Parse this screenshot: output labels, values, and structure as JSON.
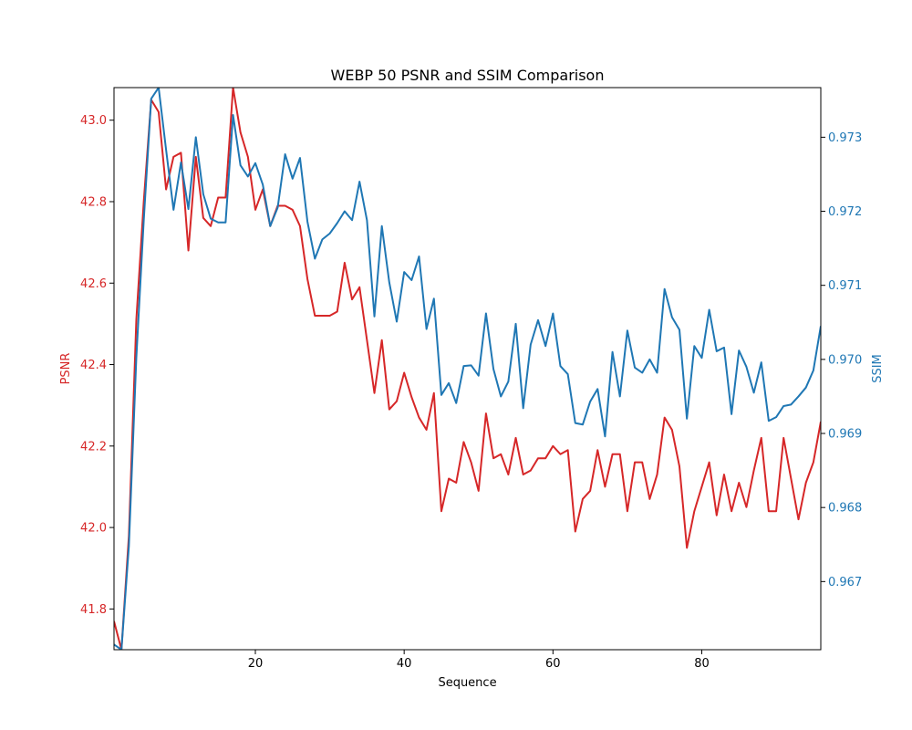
{
  "chart_data": {
    "type": "line",
    "title": "WEBP 50 PSNR and SSIM Comparison",
    "xlabel": "Sequence",
    "ylabel_left": "PSNR",
    "ylabel_right": "SSIM",
    "xlim": [
      1,
      96
    ],
    "ylim_left": [
      41.7,
      43.08
    ],
    "ylim_right": [
      0.96608,
      0.97367
    ],
    "x_ticks": [
      20,
      40,
      60,
      80
    ],
    "y_ticks_left": [
      41.8,
      42.0,
      42.2,
      42.4,
      42.6,
      42.8,
      43.0
    ],
    "y_ticks_left_labels": [
      "41.8",
      "42.0",
      "42.2",
      "42.4",
      "42.6",
      "42.8",
      "43.0"
    ],
    "y_ticks_right": [
      0.967,
      0.968,
      0.969,
      0.97,
      0.971,
      0.972,
      0.973
    ],
    "y_ticks_right_labels": [
      "0.967",
      "0.968",
      "0.969",
      "0.970",
      "0.971",
      "0.972",
      "0.973"
    ],
    "grid": false,
    "colors": {
      "psnr": "#d62728",
      "ssim": "#1f77b4"
    },
    "x": [
      1,
      2,
      3,
      4,
      5,
      6,
      7,
      8,
      9,
      10,
      11,
      12,
      13,
      14,
      15,
      16,
      17,
      18,
      19,
      20,
      21,
      22,
      23,
      24,
      25,
      26,
      27,
      28,
      29,
      30,
      31,
      32,
      33,
      34,
      35,
      36,
      37,
      38,
      39,
      40,
      41,
      42,
      43,
      44,
      45,
      46,
      47,
      48,
      49,
      50,
      51,
      52,
      53,
      54,
      55,
      56,
      57,
      58,
      59,
      60,
      61,
      62,
      63,
      64,
      65,
      66,
      67,
      68,
      69,
      70,
      71,
      72,
      73,
      74,
      75,
      76,
      77,
      78,
      79,
      80,
      81,
      82,
      83,
      84,
      85,
      86,
      87,
      88,
      89,
      90,
      91,
      92,
      93,
      94,
      95,
      96
    ],
    "series": [
      {
        "key": "psnr",
        "axis": "left",
        "values": [
          41.77,
          41.7,
          41.98,
          42.51,
          42.8,
          43.05,
          43.02,
          42.83,
          42.91,
          42.92,
          42.68,
          42.91,
          42.76,
          42.74,
          42.81,
          42.81,
          43.08,
          42.97,
          42.91,
          42.78,
          42.83,
          42.74,
          42.79,
          42.79,
          42.78,
          42.74,
          42.61,
          42.52,
          42.52,
          42.52,
          42.53,
          42.65,
          42.56,
          42.59,
          42.46,
          42.33,
          42.46,
          42.29,
          42.31,
          42.38,
          42.32,
          42.27,
          42.24,
          42.33,
          42.04,
          42.12,
          42.11,
          42.21,
          42.16,
          42.09,
          42.28,
          42.17,
          42.18,
          42.13,
          42.22,
          42.13,
          42.14,
          42.17,
          42.17,
          42.2,
          42.18,
          42.19,
          41.99,
          42.07,
          42.09,
          42.19,
          42.1,
          42.18,
          42.18,
          42.04,
          42.16,
          42.16,
          42.07,
          42.13,
          42.27,
          42.24,
          42.15,
          41.95,
          42.04,
          42.1,
          42.16,
          42.03,
          42.13,
          42.04,
          42.11,
          42.05,
          42.14,
          42.22,
          42.04,
          42.04,
          42.22,
          42.12,
          42.02,
          42.11,
          42.16,
          42.26
        ]
      },
      {
        "key": "ssim",
        "axis": "right",
        "values": [
          0.96615,
          0.96608,
          0.96748,
          0.97002,
          0.97188,
          0.97352,
          0.97367,
          0.97283,
          0.97202,
          0.97266,
          0.97203,
          0.973,
          0.97223,
          0.9719,
          0.97185,
          0.97185,
          0.9733,
          0.97262,
          0.97247,
          0.97265,
          0.97236,
          0.9718,
          0.97205,
          0.97277,
          0.97244,
          0.97272,
          0.97186,
          0.97136,
          0.97162,
          0.9717,
          0.97184,
          0.972,
          0.97188,
          0.9724,
          0.97188,
          0.97058,
          0.9718,
          0.97104,
          0.97051,
          0.97118,
          0.97107,
          0.97139,
          0.97041,
          0.97082,
          0.96952,
          0.96968,
          0.96941,
          0.96991,
          0.96992,
          0.96978,
          0.97062,
          0.96987,
          0.9695,
          0.9697,
          0.97048,
          0.96934,
          0.9702,
          0.97053,
          0.97018,
          0.97062,
          0.96991,
          0.9698,
          0.96914,
          0.96912,
          0.96943,
          0.9696,
          0.96896,
          0.9701,
          0.9695,
          0.97039,
          0.96989,
          0.96982,
          0.97,
          0.96982,
          0.97095,
          0.97057,
          0.9704,
          0.9692,
          0.97018,
          0.97002,
          0.97067,
          0.97011,
          0.97016,
          0.96926,
          0.97012,
          0.9699,
          0.96955,
          0.96996,
          0.96917,
          0.96922,
          0.96937,
          0.96939,
          0.9695,
          0.96962,
          0.96985,
          0.97045
        ]
      }
    ]
  }
}
